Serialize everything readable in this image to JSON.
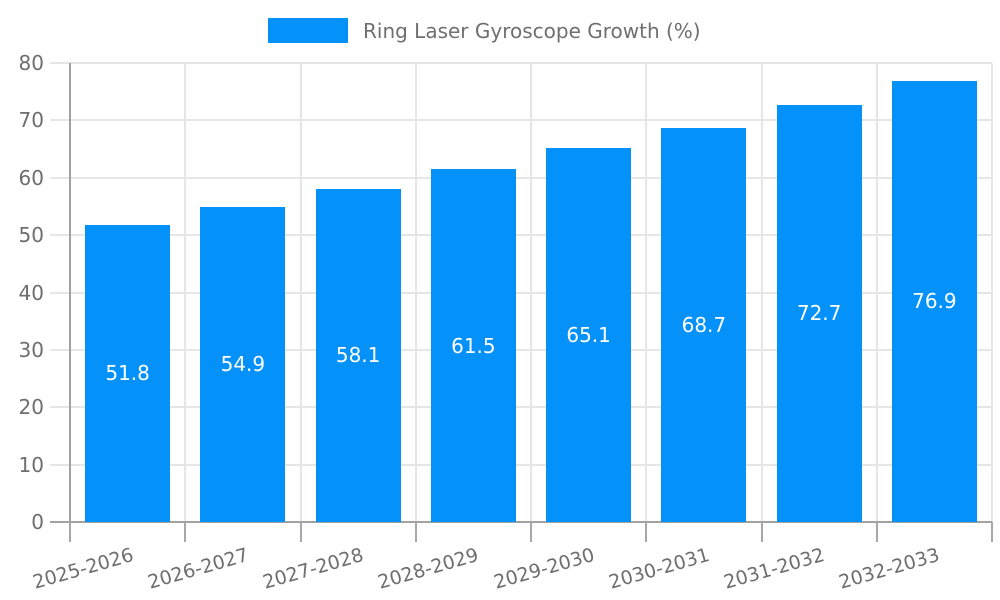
{
  "chart_data": {
    "type": "bar",
    "title": "Ring Laser Gyroscope Growth (%)",
    "legend": {
      "entries": [
        "Ring Laser Gyroscope Growth (%)"
      ],
      "position": "top"
    },
    "categories": [
      "2025-2026",
      "2026-2027",
      "2027-2028",
      "2028-2029",
      "2029-2030",
      "2030-2031",
      "2031-2032",
      "2032-2033"
    ],
    "values": [
      51.8,
      54.9,
      58.1,
      61.5,
      65.1,
      68.7,
      72.7,
      76.9
    ],
    "value_labels": [
      "51.8",
      "54.9",
      "58.1",
      "61.5",
      "65.1",
      "68.7",
      "72.7",
      "76.9"
    ],
    "xlabel": "",
    "ylabel": "",
    "ylim": [
      0,
      80
    ],
    "y_ticks": [
      0,
      10,
      20,
      30,
      40,
      50,
      60,
      70,
      80
    ],
    "grid": true,
    "colors": {
      "bar": "#0591fa",
      "bar_value_text": "#ffffff",
      "grid_line": "#e6e6e6",
      "axis_line": "#a2a2a2",
      "tick_text": "#6e6e6e"
    }
  }
}
